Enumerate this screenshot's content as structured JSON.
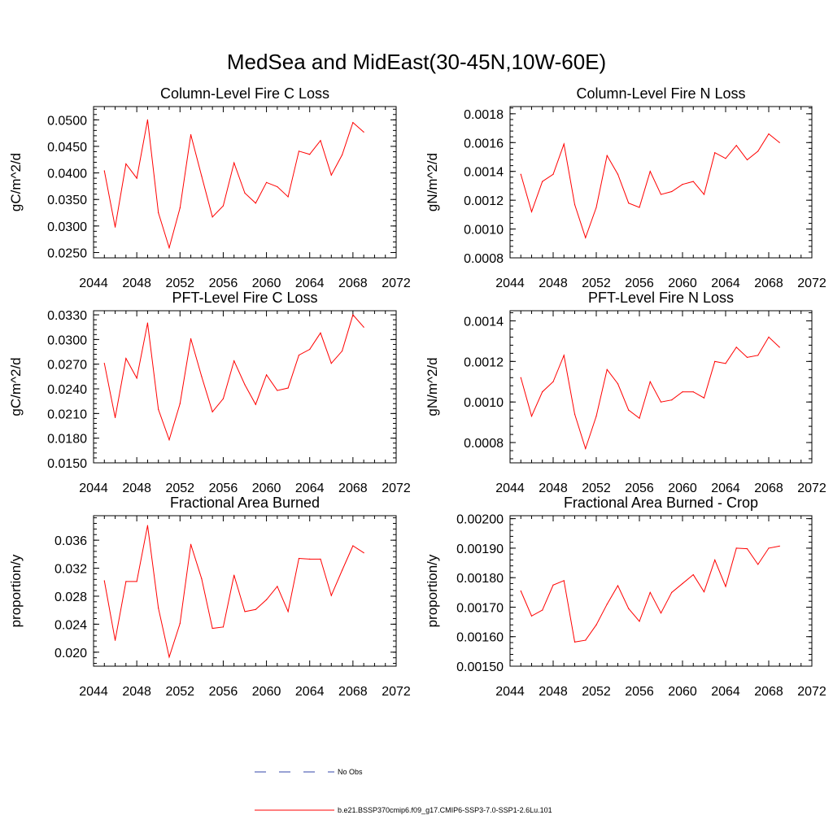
{
  "title": "MedSea and MidEast(30-45N,10W-60E)",
  "colors": {
    "model": "#ff0000",
    "obs": "#3344aa",
    "axis": "#000000"
  },
  "legend": {
    "obs_label": "No Obs",
    "model_label": "b.e21.BSSP370cmip6.f09_g17.CMIP6-SSP3-7.0-SSP1-2.6Lu.101"
  },
  "chart_data": [
    {
      "type": "line",
      "title": "Column-Level Fire C Loss",
      "ylabel": "gC/m^2/d",
      "xlim": [
        2044,
        2072
      ],
      "ylim": [
        0.024,
        0.0525
      ],
      "xticks": [
        2044,
        2048,
        2052,
        2056,
        2060,
        2064,
        2068,
        2072
      ],
      "xtick_labels": [
        "2044",
        "2048",
        "2052",
        "2056",
        "2060",
        "2064",
        "2068",
        "2072"
      ],
      "yticks": [
        0.025,
        0.03,
        0.035,
        0.04,
        0.045,
        0.05
      ],
      "ytick_labels": [
        "0.0250",
        "0.0300",
        "0.0350",
        "0.0400",
        "0.0450",
        "0.0500"
      ],
      "x": [
        2045,
        2046,
        2047,
        2048,
        2049,
        2050,
        2051,
        2052,
        2053,
        2054,
        2055,
        2056,
        2057,
        2058,
        2059,
        2060,
        2061,
        2062,
        2063,
        2064,
        2065,
        2066,
        2067,
        2068,
        2069
      ],
      "series": [
        {
          "values": [
            0.0404,
            0.0298,
            0.0417,
            0.039,
            0.05,
            0.0325,
            0.0259,
            0.0334,
            0.0472,
            0.0394,
            0.0317,
            0.0338,
            0.0419,
            0.0362,
            0.0343,
            0.0382,
            0.0374,
            0.0355,
            0.0441,
            0.0435,
            0.0461,
            0.0396,
            0.0434,
            0.0495,
            0.0477
          ]
        }
      ]
    },
    {
      "type": "line",
      "title": "Column-Level Fire N Loss",
      "ylabel": "gN/m^2/d",
      "xlim": [
        2044,
        2072
      ],
      "ylim": [
        0.0008,
        0.00185
      ],
      "xticks": [
        2044,
        2048,
        2052,
        2056,
        2060,
        2064,
        2068,
        2072
      ],
      "xtick_labels": [
        "2044",
        "2048",
        "2052",
        "2056",
        "2060",
        "2064",
        "2068",
        "2072"
      ],
      "yticks": [
        0.0008,
        0.001,
        0.0012,
        0.0014,
        0.0016,
        0.0018
      ],
      "ytick_labels": [
        "0.0008",
        "0.0010",
        "0.0012",
        "0.0014",
        "0.0016",
        "0.0018"
      ],
      "x": [
        2045,
        2046,
        2047,
        2048,
        2049,
        2050,
        2051,
        2052,
        2053,
        2054,
        2055,
        2056,
        2057,
        2058,
        2059,
        2060,
        2061,
        2062,
        2063,
        2064,
        2065,
        2066,
        2067,
        2068,
        2069
      ],
      "series": [
        {
          "values": [
            0.00138,
            0.00112,
            0.00133,
            0.00138,
            0.00159,
            0.00117,
            0.00094,
            0.00115,
            0.00151,
            0.00138,
            0.00118,
            0.00115,
            0.0014,
            0.00124,
            0.00126,
            0.00131,
            0.00133,
            0.00124,
            0.00153,
            0.00149,
            0.00158,
            0.00148,
            0.00154,
            0.00166,
            0.0016
          ]
        }
      ]
    },
    {
      "type": "line",
      "title": "PFT-Level Fire C Loss",
      "ylabel": "gC/m^2/d",
      "xlim": [
        2044,
        2072
      ],
      "ylim": [
        0.015,
        0.0335
      ],
      "xticks": [
        2044,
        2048,
        2052,
        2056,
        2060,
        2064,
        2068,
        2072
      ],
      "xtick_labels": [
        "2044",
        "2048",
        "2052",
        "2056",
        "2060",
        "2064",
        "2068",
        "2072"
      ],
      "yticks": [
        0.015,
        0.018,
        0.021,
        0.024,
        0.027,
        0.03,
        0.033
      ],
      "ytick_labels": [
        "0.0150",
        "0.0180",
        "0.0210",
        "0.0240",
        "0.0270",
        "0.0300",
        "0.0330"
      ],
      "x": [
        2045,
        2046,
        2047,
        2048,
        2049,
        2050,
        2051,
        2052,
        2053,
        2054,
        2055,
        2056,
        2057,
        2058,
        2059,
        2060,
        2061,
        2062,
        2063,
        2064,
        2065,
        2066,
        2067,
        2068,
        2069
      ],
      "series": [
        {
          "values": [
            0.0271,
            0.0205,
            0.0277,
            0.0253,
            0.032,
            0.0215,
            0.0178,
            0.0222,
            0.0301,
            0.0255,
            0.0212,
            0.0228,
            0.0274,
            0.0245,
            0.0221,
            0.0257,
            0.0238,
            0.0241,
            0.0281,
            0.0288,
            0.0308,
            0.0271,
            0.0286,
            0.033,
            0.0315
          ]
        }
      ]
    },
    {
      "type": "line",
      "title": "PFT-Level Fire N Loss",
      "ylabel": "gN/m^2/d",
      "xlim": [
        2044,
        2072
      ],
      "ylim": [
        0.0007,
        0.00145
      ],
      "xticks": [
        2044,
        2048,
        2052,
        2056,
        2060,
        2064,
        2068,
        2072
      ],
      "xtick_labels": [
        "2044",
        "2048",
        "2052",
        "2056",
        "2060",
        "2064",
        "2068",
        "2072"
      ],
      "yticks": [
        0.0008,
        0.001,
        0.0012,
        0.0014
      ],
      "ytick_labels": [
        "0.0008",
        "0.0010",
        "0.0012",
        "0.0014"
      ],
      "x": [
        2045,
        2046,
        2047,
        2048,
        2049,
        2050,
        2051,
        2052,
        2053,
        2054,
        2055,
        2056,
        2057,
        2058,
        2059,
        2060,
        2061,
        2062,
        2063,
        2064,
        2065,
        2066,
        2067,
        2068,
        2069
      ],
      "series": [
        {
          "values": [
            0.00112,
            0.00093,
            0.00105,
            0.0011,
            0.00123,
            0.00094,
            0.00077,
            0.00093,
            0.00116,
            0.00109,
            0.00096,
            0.00092,
            0.0011,
            0.001,
            0.00101,
            0.00105,
            0.00105,
            0.00102,
            0.0012,
            0.00119,
            0.00127,
            0.00122,
            0.00123,
            0.00132,
            0.00127
          ]
        }
      ]
    },
    {
      "type": "line",
      "title": "Fractional Area Burned",
      "ylabel": "proportion/y",
      "xlim": [
        2044,
        2072
      ],
      "ylim": [
        0.018,
        0.0395
      ],
      "xticks": [
        2044,
        2048,
        2052,
        2056,
        2060,
        2064,
        2068,
        2072
      ],
      "xtick_labels": [
        "2044",
        "2048",
        "2052",
        "2056",
        "2060",
        "2064",
        "2068",
        "2072"
      ],
      "yticks": [
        0.02,
        0.024,
        0.028,
        0.032,
        0.036
      ],
      "ytick_labels": [
        "0.020",
        "0.024",
        "0.028",
        "0.032",
        "0.036"
      ],
      "x": [
        2045,
        2046,
        2047,
        2048,
        2049,
        2050,
        2051,
        2052,
        2053,
        2054,
        2055,
        2056,
        2057,
        2058,
        2059,
        2060,
        2061,
        2062,
        2063,
        2064,
        2065,
        2066,
        2067,
        2068,
        2069
      ],
      "series": [
        {
          "values": [
            0.0302,
            0.0217,
            0.0301,
            0.0301,
            0.0381,
            0.0263,
            0.0193,
            0.0241,
            0.0354,
            0.0305,
            0.0234,
            0.0236,
            0.031,
            0.0258,
            0.0261,
            0.0275,
            0.0294,
            0.0258,
            0.0334,
            0.0333,
            0.0333,
            0.0281,
            0.0317,
            0.0352,
            0.0342
          ]
        }
      ]
    },
    {
      "type": "line",
      "title": "Fractional Area Burned - Crop",
      "ylabel": "proportion/y",
      "xlim": [
        2044,
        2072
      ],
      "ylim": [
        0.0015,
        0.00201
      ],
      "xticks": [
        2044,
        2048,
        2052,
        2056,
        2060,
        2064,
        2068,
        2072
      ],
      "xtick_labels": [
        "2044",
        "2048",
        "2052",
        "2056",
        "2060",
        "2064",
        "2068",
        "2072"
      ],
      "yticks": [
        0.0015,
        0.0016,
        0.0017,
        0.0018,
        0.0019,
        0.002
      ],
      "ytick_labels": [
        "0.00150",
        "0.00160",
        "0.00170",
        "0.00180",
        "0.00190",
        "0.00200"
      ],
      "x": [
        2045,
        2046,
        2047,
        2048,
        2049,
        2050,
        2051,
        2052,
        2053,
        2054,
        2055,
        2056,
        2057,
        2058,
        2059,
        2060,
        2061,
        2062,
        2063,
        2064,
        2065,
        2066,
        2067,
        2068,
        2069
      ],
      "series": [
        {
          "values": [
            0.001755,
            0.00167,
            0.00169,
            0.001775,
            0.00179,
            0.001582,
            0.001588,
            0.00164,
            0.00171,
            0.001773,
            0.001695,
            0.001652,
            0.00175,
            0.00168,
            0.00175,
            0.00178,
            0.00181,
            0.001752,
            0.00186,
            0.00177,
            0.0019,
            0.001898,
            0.001845,
            0.0019,
            0.001907
          ]
        }
      ]
    }
  ]
}
